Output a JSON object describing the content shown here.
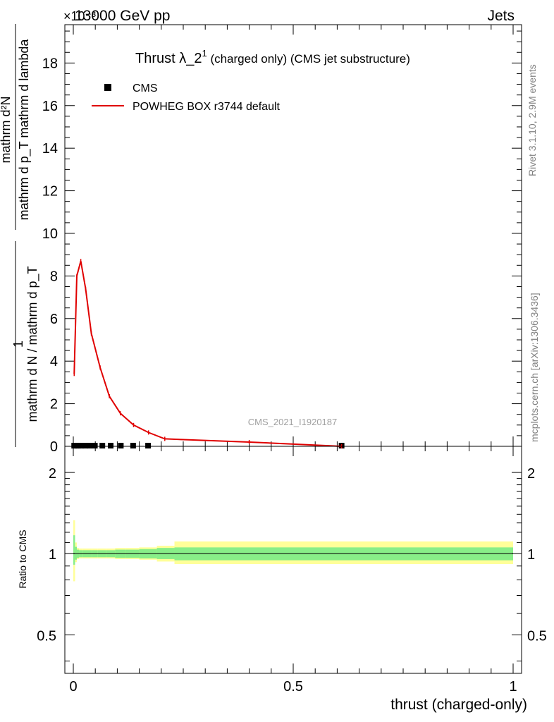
{
  "header": {
    "left": "13000 GeV pp",
    "right": "Jets",
    "exponent": "×10⁻³"
  },
  "side_labels": {
    "rivet": "Rivet 3.1.10,  2.9M events",
    "mcplots": "mcplots.cern.ch [arXiv:1306.3436]"
  },
  "chart_data": [
    {
      "type": "line",
      "title": "Thrust λ_2¹ (charged only) (CMS jet substructure)",
      "title_main": "Thrust λ_2",
      "title_sup": "1",
      "title_suffix": " (charged only) (CMS jet substructure)",
      "watermark": "CMS_2021_I1920187",
      "ylabel_numer": "mathrm d²N",
      "ylabel_denom": "mathrm d p_T mathrm d lambda",
      "ylabel_prefix_numer": "1",
      "ylabel_prefix_denom": "mathrm d N / mathrm d p_T",
      "xlim": [
        0,
        1
      ],
      "ylim": [
        0,
        19.8
      ],
      "y_exponent": "×10⁻³",
      "yticks": [
        0,
        2,
        4,
        6,
        8,
        10,
        12,
        14,
        16,
        18
      ],
      "ytick_labels": [
        "0",
        "2",
        "4",
        "6",
        "8",
        "10",
        "12",
        "14",
        "16",
        "18"
      ],
      "legend": [
        {
          "label": "CMS",
          "marker": "square",
          "color": "#000000"
        },
        {
          "label": "POWHEG BOX r3744 default",
          "marker": "line",
          "color": "#e00000"
        }
      ],
      "series": [
        {
          "name": "CMS",
          "x": [
            0.002,
            0.006,
            0.011,
            0.018,
            0.027,
            0.037,
            0.049,
            0.066,
            0.085,
            0.108,
            0.136,
            0.17,
            0.61
          ],
          "y": [
            0.03,
            0.03,
            0.03,
            0.03,
            0.03,
            0.03,
            0.03,
            0.03,
            0.03,
            0.03,
            0.03,
            0.03,
            0.03
          ]
        },
        {
          "name": "POWHEG BOX r3744 default",
          "x": [
            0.002,
            0.008,
            0.017,
            0.028,
            0.041,
            0.061,
            0.082,
            0.107,
            0.137,
            0.171,
            0.208,
            0.4,
            0.61
          ],
          "y": [
            3.4,
            8.0,
            8.7,
            7.4,
            5.3,
            3.7,
            2.35,
            1.55,
            1.0,
            0.65,
            0.35,
            0.2,
            0.0
          ]
        }
      ]
    },
    {
      "type": "area",
      "ylabel": "Ratio to CMS",
      "xlabel": "thrust (charged-only)",
      "xlim": [
        0,
        1
      ],
      "ylim": [
        0.36,
        2.5
      ],
      "log_y": true,
      "xticks": [
        0,
        0.5,
        1
      ],
      "xtick_labels": [
        "0",
        "0.5",
        "1"
      ],
      "yticks": [
        0.5,
        1,
        2
      ],
      "ytick_labels": [
        "0.5",
        "1",
        "2"
      ],
      "bins": [
        0,
        0.004,
        0.008,
        0.013,
        0.022,
        0.032,
        0.043,
        0.055,
        0.075,
        0.095,
        0.12,
        0.15,
        0.19,
        0.23,
        1.0
      ],
      "green_lo": [
        0.91,
        0.95,
        0.965,
        0.97,
        0.97,
        0.97,
        0.97,
        0.97,
        0.97,
        0.965,
        0.965,
        0.96,
        0.955,
        0.945
      ],
      "green_hi": [
        1.17,
        1.06,
        1.035,
        1.03,
        1.03,
        1.03,
        1.03,
        1.03,
        1.03,
        1.035,
        1.035,
        1.04,
        1.05,
        1.055
      ],
      "yellow_lo": [
        0.79,
        0.93,
        0.955,
        0.96,
        0.96,
        0.96,
        0.96,
        0.96,
        0.96,
        0.955,
        0.955,
        0.95,
        0.935,
        0.915
      ],
      "yellow_hi": [
        1.33,
        1.1,
        1.05,
        1.045,
        1.045,
        1.045,
        1.045,
        1.045,
        1.045,
        1.05,
        1.05,
        1.055,
        1.07,
        1.11
      ],
      "ratio_line": 1.0
    }
  ]
}
